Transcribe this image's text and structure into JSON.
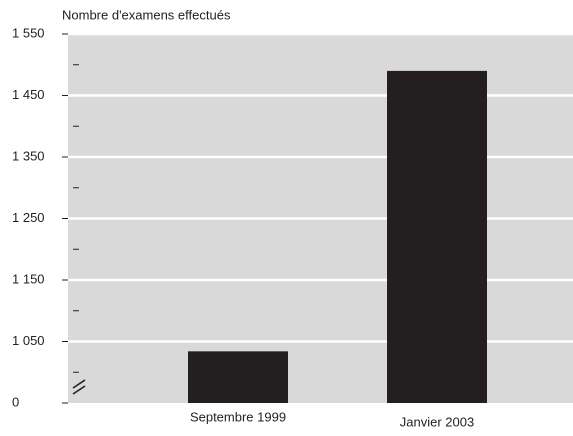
{
  "chart_data": {
    "type": "bar",
    "y_axis_label": "Nombre d'examens effectués",
    "categories": [
      "Septembre 1999",
      "Janvier 2003"
    ],
    "values": [
      1034,
      1490
    ],
    "color": "#231f20",
    "background": "#d9d9d9",
    "ylim": [
      0,
      1550
    ],
    "axis_break": [
      0,
      950
    ],
    "yticks": [
      0,
      {
        "value": 1050,
        "label": "1 050"
      },
      {
        "value": 1150,
        "label": "1 150"
      },
      {
        "value": 1250,
        "label": "1 250"
      },
      {
        "value": 1350,
        "label": "1 350"
      },
      {
        "value": 1450,
        "label": "1 450"
      },
      {
        "value": 1550,
        "label": "1 550"
      }
    ],
    "yminorticks": [
      1000,
      1100,
      1200,
      1300,
      1400,
      1500
    ],
    "grid": true
  }
}
